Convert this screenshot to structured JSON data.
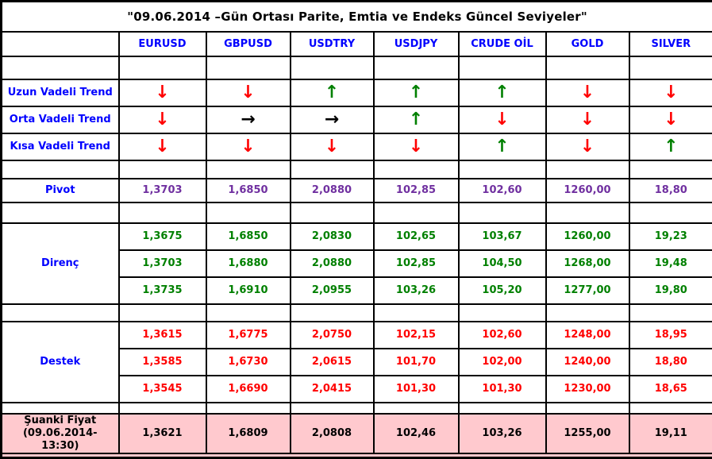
{
  "title": "\"09.06.2014 –Gün Ortası Parite, Emtia ve Endeks Güncel Seviyeler\"",
  "columns": [
    "EURUSD",
    "GBPUSD",
    "USDTRY",
    "USDJPY",
    "CRUDE OİL",
    "GOLD",
    "SILVER"
  ],
  "arrow_glyphs": {
    "up": "↑",
    "down": "↓",
    "right": "→"
  },
  "trends": [
    {
      "label": "Uzun Vadeli Trend",
      "arrows": [
        "down",
        "down",
        "up",
        "up",
        "up",
        "down",
        "down"
      ]
    },
    {
      "label": "Orta Vadeli Trend",
      "arrows": [
        "down",
        "right",
        "right",
        "up",
        "down",
        "down",
        "down"
      ]
    },
    {
      "label": "Kısa Vadeli Trend",
      "arrows": [
        "down",
        "down",
        "down",
        "down",
        "up",
        "down",
        "up"
      ]
    }
  ],
  "pivot": {
    "label": "Pivot",
    "values": [
      "1,3703",
      "1,6850",
      "2,0880",
      "102,85",
      "102,60",
      "1260,00",
      "18,80"
    ]
  },
  "resistance": {
    "label": "Direnç",
    "rows": [
      [
        "1,3675",
        "1,6850",
        "2,0830",
        "102,65",
        "103,67",
        "1260,00",
        "19,23"
      ],
      [
        "1,3703",
        "1,6880",
        "2,0880",
        "102,85",
        "104,50",
        "1268,00",
        "19,48"
      ],
      [
        "1,3735",
        "1,6910",
        "2,0955",
        "103,26",
        "105,20",
        "1277,00",
        "19,80"
      ]
    ]
  },
  "support": {
    "label": "Destek",
    "rows": [
      [
        "1,3615",
        "1,6775",
        "2,0750",
        "102,15",
        "102,60",
        "1248,00",
        "18,95"
      ],
      [
        "1,3585",
        "1,6730",
        "2,0615",
        "101,70",
        "102,00",
        "1240,00",
        "18,80"
      ],
      [
        "1,3545",
        "1,6690",
        "2,0415",
        "101,30",
        "101,30",
        "1230,00",
        "18,65"
      ]
    ]
  },
  "current": {
    "label_lines": [
      "Şuanki Fiyat",
      "(09.06.2014-",
      "13:30)"
    ],
    "values": [
      "1,3621",
      "1,6809",
      "2,0808",
      "102,46",
      "103,26",
      "1255,00",
      "19,11"
    ]
  },
  "colors": {
    "header_text": "#0000FF",
    "label_text": "#0000FF",
    "pivot_text": "#7030A0",
    "resistance_text": "#008000",
    "support_text": "#FF0000",
    "arrow_up": "#008000",
    "arrow_down": "#FF0000",
    "arrow_right": "#000000",
    "current_row_bg": "#FFC9CE",
    "border": "#000000"
  }
}
